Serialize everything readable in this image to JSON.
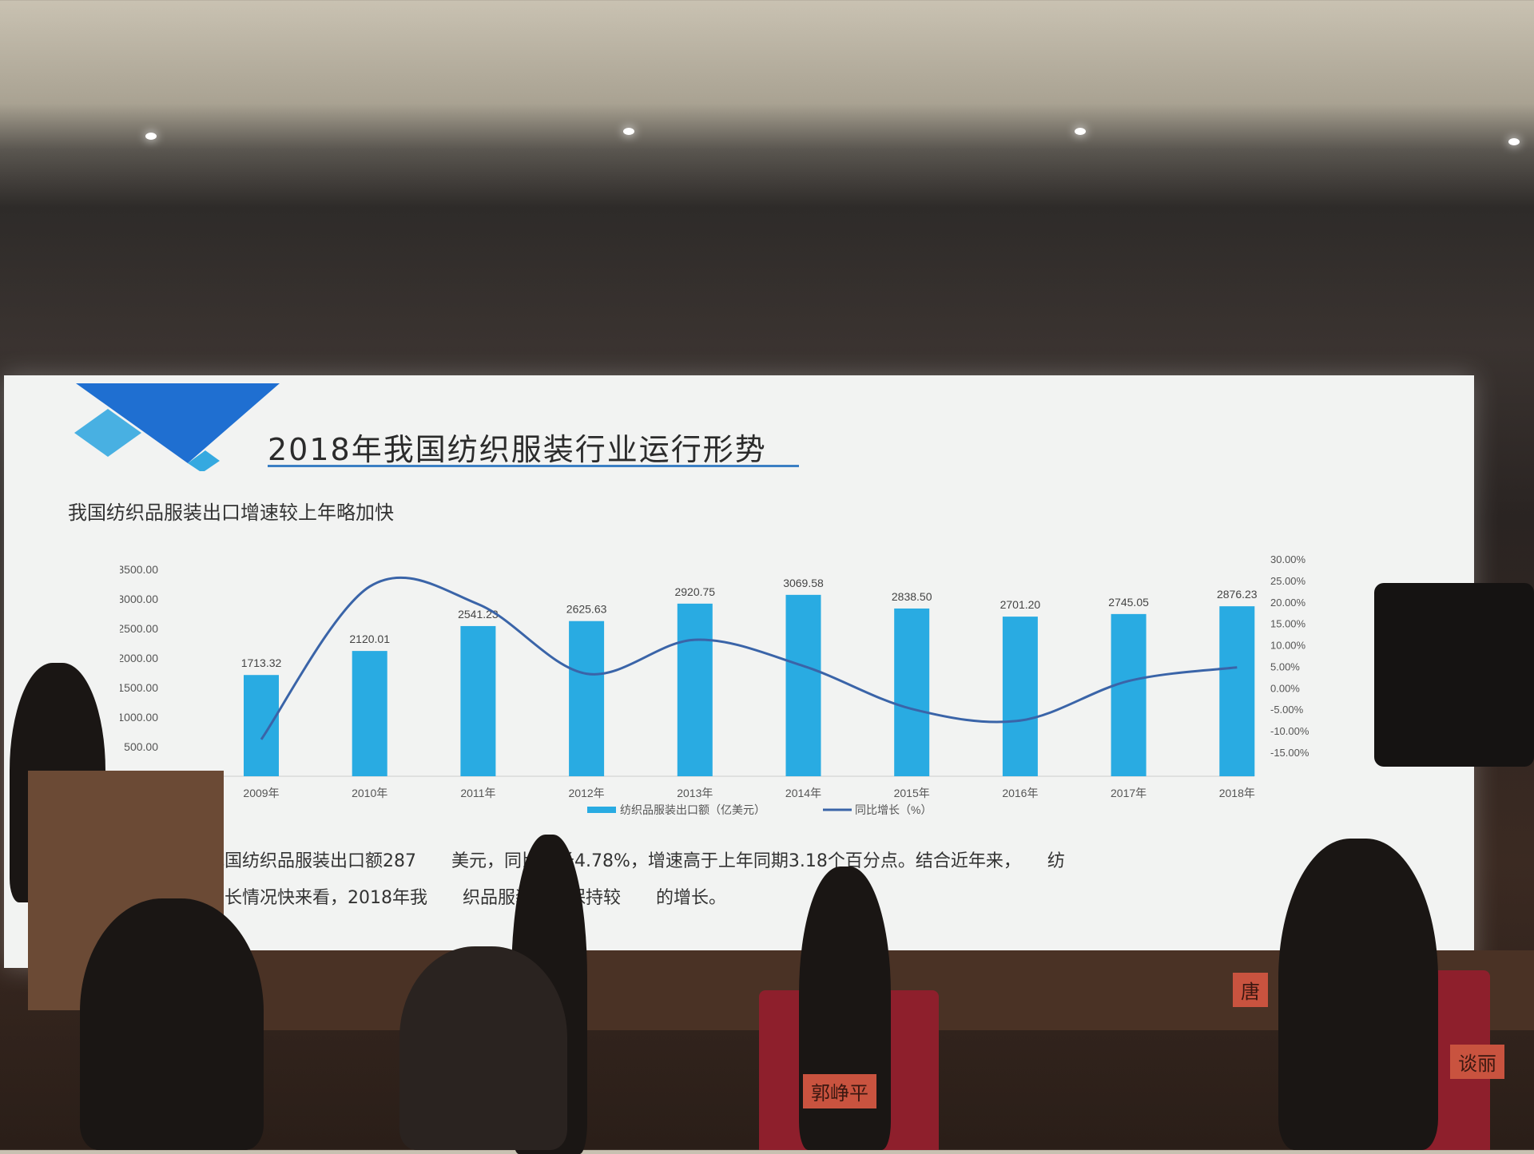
{
  "slide": {
    "title": "2018年我国纺织服装行业运行形势",
    "subtitle": "我国纺织品服装出口增速较上年略加快",
    "body_lines": [
      "，我国纺织品服装出口额287　　美元，同比增长4.78%，增速高于上年同期3.18个百分点。结合近年来，　　纺",
      "口增长情况快来看，2018年我　　织品服装出口保持较　　的增长。"
    ],
    "accent_color": "#3b7fc4",
    "deco_colors": [
      "#1f6fd1",
      "#35a9e0"
    ]
  },
  "nameplates": [
    "郭峥平",
    "唐",
    "谈丽"
  ],
  "chart_data": {
    "type": "bar+line",
    "categories": [
      "2009年",
      "2010年",
      "2011年",
      "2012年",
      "2013年",
      "2014年",
      "2015年",
      "2016年",
      "2017年",
      "2018年"
    ],
    "series": [
      {
        "name": "纺织品服装出口额（亿美元）",
        "type": "bar",
        "axis": "left",
        "color": "#29abe2",
        "values": [
          1713.32,
          2120.01,
          2541.23,
          2625.63,
          2920.75,
          3069.58,
          2838.5,
          2701.2,
          2745.05,
          2876.23
        ],
        "labels": [
          "1713.32",
          "2120.01",
          "2541.23",
          "2625.63",
          "2920.75",
          "3069.58",
          "2838.50",
          "2701.20",
          "2745.05",
          "2876.23"
        ]
      },
      {
        "name": "同比增长（%）",
        "type": "line",
        "axis": "right",
        "color": "#3a64a8",
        "smooth": true,
        "values": [
          -12.0,
          23.6,
          19.5,
          3.3,
          11.2,
          5.1,
          -4.9,
          -7.6,
          1.6,
          4.78
        ]
      }
    ],
    "left_axis": {
      "min": 0,
      "max": 3500,
      "ticks": [
        "500.00",
        "1000.00",
        "1500.00",
        "2000.00",
        "2500.00",
        "3000.00",
        "3500.00"
      ]
    },
    "right_axis": {
      "min": -15,
      "max": 30,
      "ticks": [
        "-15.00%",
        "-10.00%",
        "-5.00%",
        "0.00%",
        "5.00%",
        "10.00%",
        "15.00%",
        "20.00%",
        "25.00%",
        "30.00%"
      ]
    },
    "legend_position": "bottom",
    "grid": false
  }
}
